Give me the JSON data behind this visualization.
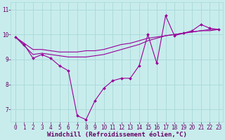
{
  "xlabel": "Windchill (Refroidissement éolien,°C)",
  "background_color": "#c8ecec",
  "grid_color": "#a8d8d8",
  "line_color": "#990099",
  "hours": [
    0,
    1,
    2,
    3,
    4,
    5,
    6,
    7,
    8,
    9,
    10,
    11,
    12,
    13,
    14,
    15,
    16,
    17,
    18,
    19,
    20,
    21,
    22,
    23
  ],
  "temp_line": [
    9.9,
    9.6,
    9.05,
    9.2,
    9.05,
    8.75,
    8.55,
    6.75,
    6.6,
    7.35,
    7.85,
    8.15,
    8.25,
    8.25,
    8.75,
    10.0,
    8.85,
    10.75,
    9.95,
    10.05,
    10.15,
    10.4,
    10.25,
    10.2
  ],
  "line2": [
    9.9,
    9.55,
    9.2,
    9.25,
    9.2,
    9.15,
    9.1,
    9.1,
    9.1,
    9.15,
    9.2,
    9.3,
    9.4,
    9.5,
    9.6,
    9.75,
    9.85,
    9.95,
    10.0,
    10.05,
    10.1,
    10.15,
    10.15,
    10.2
  ],
  "line3": [
    9.9,
    9.65,
    9.4,
    9.4,
    9.35,
    9.3,
    9.3,
    9.3,
    9.35,
    9.35,
    9.4,
    9.5,
    9.6,
    9.65,
    9.75,
    9.85,
    9.9,
    9.95,
    10.0,
    10.05,
    10.1,
    10.15,
    10.2,
    10.2
  ],
  "ylim": [
    6.5,
    11.3
  ],
  "yticks": [
    7,
    8,
    9,
    10,
    11
  ],
  "xticks": [
    0,
    1,
    2,
    3,
    4,
    5,
    6,
    7,
    8,
    9,
    10,
    11,
    12,
    13,
    14,
    15,
    16,
    17,
    18,
    19,
    20,
    21,
    22,
    23
  ],
  "font_color": "#660066",
  "tick_fontsize": 5.5,
  "label_fontsize": 6.5
}
